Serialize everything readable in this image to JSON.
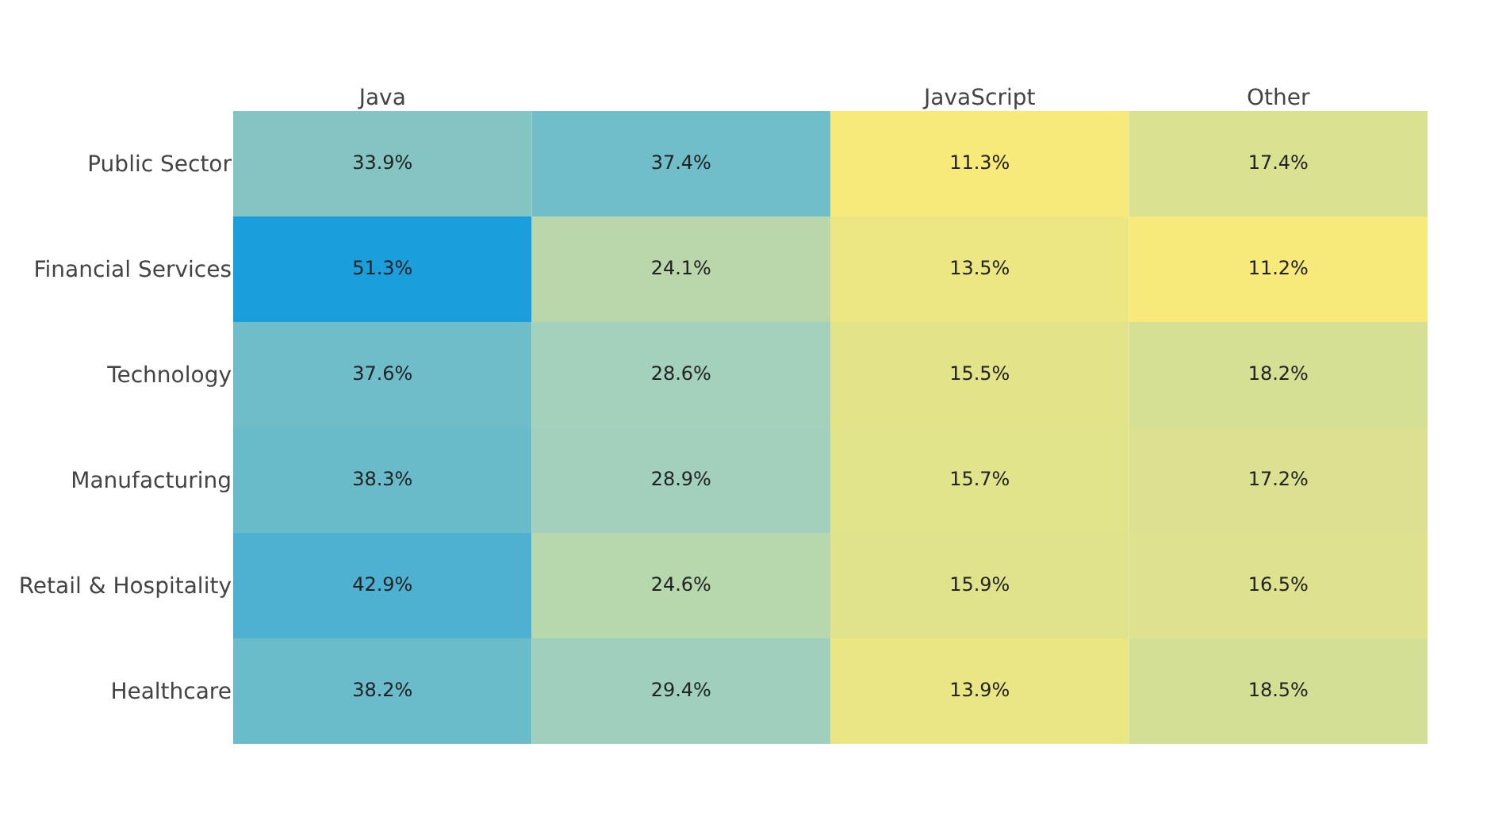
{
  "chart_data": {
    "type": "heatmap",
    "categories": [
      "Java",
      null,
      "JavaScript",
      "Other"
    ],
    "y_categories": [
      "Public Sector",
      "Financial Services",
      "Technology",
      "Manufacturing",
      "Retail & Hospitality",
      "Healthcare"
    ],
    "cells": [
      [
        33.9,
        37.4,
        11.3,
        17.4
      ],
      [
        51.3,
        24.1,
        13.5,
        11.2
      ],
      [
        37.6,
        28.6,
        15.5,
        18.2
      ],
      [
        38.3,
        28.9,
        15.7,
        17.2
      ],
      [
        42.9,
        24.6,
        15.9,
        16.5
      ],
      [
        38.2,
        29.4,
        13.9,
        18.5
      ]
    ],
    "cell_labels": [
      [
        "33.9%",
        "37.4%",
        "11.3%",
        "17.4%"
      ],
      [
        "51.3%",
        "24.1%",
        "13.5%",
        "11.2%"
      ],
      [
        "37.6%",
        "28.6%",
        "15.5%",
        "18.2%"
      ],
      [
        "38.3%",
        "28.9%",
        "15.7%",
        "17.2%"
      ],
      [
        "42.9%",
        "24.6%",
        "15.9%",
        "16.5%"
      ],
      [
        "38.2%",
        "29.4%",
        "13.9%",
        "18.5%"
      ]
    ]
  }
}
